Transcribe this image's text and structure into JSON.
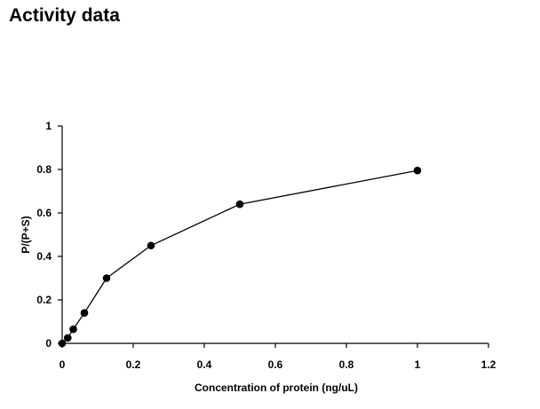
{
  "page": {
    "title": "Activity data"
  },
  "chart_data": {
    "type": "line",
    "title": "",
    "xlabel": "Concentration of protein (ng/uL)",
    "ylabel": "P/(P+S)",
    "xlim": [
      0,
      1.2
    ],
    "ylim": [
      0,
      1
    ],
    "xticks": [
      0,
      0.2,
      0.4,
      0.6,
      0.8,
      1,
      1.2
    ],
    "yticks": [
      0,
      0.2,
      0.4,
      0.6,
      0.8,
      1
    ],
    "xtick_labels": [
      "0",
      "0.2",
      "0.4",
      "0.6",
      "0.8",
      "1",
      "1.2"
    ],
    "ytick_labels": [
      "0",
      "0.2",
      "0.4",
      "0.6",
      "0.8",
      "1"
    ],
    "grid": false,
    "legend": "none",
    "line_color": "#000000",
    "marker": "filled-circle",
    "series": [
      {
        "x": [
          0,
          0.0156,
          0.03125,
          0.0625,
          0.125,
          0.25,
          0.5,
          1
        ],
        "y": [
          0,
          0.025,
          0.065,
          0.14,
          0.3,
          0.45,
          0.64,
          0.795
        ]
      }
    ]
  }
}
